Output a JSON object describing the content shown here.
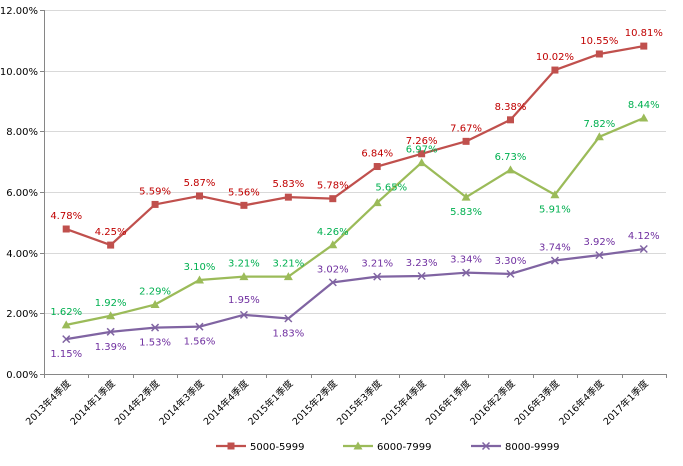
{
  "chart_data": {
    "type": "line",
    "title": "",
    "xlabel": "",
    "ylabel": "",
    "ylim": [
      0,
      12
    ],
    "yticks": [
      0,
      2,
      4,
      6,
      8,
      10,
      12
    ],
    "ytick_labels": [
      "0.00%",
      "2.00%",
      "4.00%",
      "6.00%",
      "8.00%",
      "10.00%",
      "12.00%"
    ],
    "grid": true,
    "legend_position": "bottom",
    "categories": [
      "2013年4季度",
      "2014年1季度",
      "2014年2季度",
      "2014年3季度",
      "2014年4季度",
      "2015年1季度",
      "2015年2季度",
      "2015年3季度",
      "2015年4季度",
      "2016年1季度",
      "2016年2季度",
      "2016年3季度",
      "2016年4季度",
      "2017年1季度"
    ],
    "series": [
      {
        "name": "5000-5999",
        "color": "#C0504D",
        "label_color": "#C00000",
        "marker": "square",
        "values": [
          4.78,
          4.25,
          5.59,
          5.87,
          5.56,
          5.83,
          5.78,
          6.84,
          7.26,
          7.67,
          8.38,
          10.02,
          10.55,
          10.81
        ],
        "labels": [
          "4.78%",
          "4.25%",
          "5.59%",
          "5.87%",
          "5.56%",
          "5.83%",
          "5.78%",
          "6.84%",
          "7.26%",
          "7.67%",
          "8.38%",
          "10.02%",
          "10.55%",
          "10.81%"
        ]
      },
      {
        "name": "6000-7999",
        "color": "#9BBB59",
        "label_color": "#00B050",
        "marker": "triangle",
        "values": [
          1.62,
          1.92,
          2.29,
          3.1,
          3.21,
          3.21,
          4.26,
          5.65,
          6.97,
          5.83,
          6.73,
          5.91,
          7.82,
          8.44
        ],
        "labels": [
          "1.62%",
          "1.92%",
          "2.29%",
          "3.10%",
          "3.21%",
          "3.21%",
          "4.26%",
          "5.65%",
          "6.97%",
          "5.83%",
          "6.73%",
          "5.91%",
          "7.82%",
          "8.44%"
        ]
      },
      {
        "name": "8000-9999",
        "color": "#8064A2",
        "label_color": "#7030A0",
        "marker": "x",
        "values": [
          1.15,
          1.39,
          1.53,
          1.56,
          1.95,
          1.83,
          3.02,
          3.21,
          3.23,
          3.34,
          3.3,
          3.74,
          3.92,
          4.12
        ],
        "labels": [
          "1.15%",
          "1.39%",
          "1.53%",
          "1.56%",
          "1.95%",
          "1.83%",
          "3.02%",
          "3.21%",
          "3.23%",
          "3.34%",
          "3.30%",
          "3.74%",
          "3.92%",
          "4.12%"
        ]
      }
    ]
  }
}
